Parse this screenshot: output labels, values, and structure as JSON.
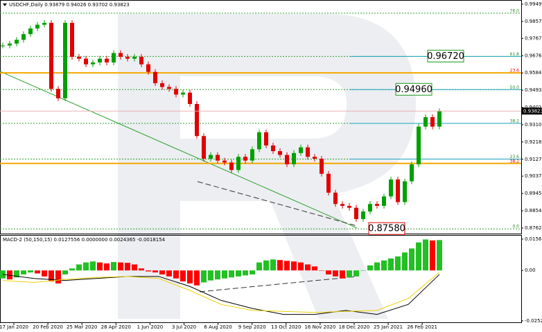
{
  "chart_data": {
    "type": "candlestick",
    "title": "USDCHF,Daily  0.93879 0.94026 0.93702 0.93823",
    "closes": [
      0.973,
      0.974,
      0.976,
      0.979,
      0.982,
      0.984,
      0.985,
      0.95,
      0.945,
      0.985,
      0.967,
      0.966,
      0.963,
      0.964,
      0.966,
      0.964,
      0.969,
      0.967,
      0.966,
      0.967,
      0.963,
      0.959,
      0.953,
      0.951,
      0.95,
      0.947,
      0.948,
      0.942,
      0.925,
      0.913,
      0.915,
      0.912,
      0.911,
      0.907,
      0.914,
      0.912,
      0.918,
      0.927,
      0.92,
      0.917,
      0.915,
      0.91,
      0.916,
      0.919,
      0.914,
      0.913,
      0.905,
      0.895,
      0.889,
      0.888,
      0.887,
      0.881,
      0.885,
      0.889,
      0.888,
      0.893,
      0.902,
      0.89,
      0.901,
      0.91,
      0.93,
      0.935,
      0.93,
      0.9382
    ],
    "up_color": "#00a000",
    "down_color": "#e00000",
    "ylim": [
      0.87331,
      0.9971
    ],
    "yticks": [
      {
        "value": 0.9949,
        "label": "0.99490"
      },
      {
        "value": 0.98575,
        "label": "0.98575"
      },
      {
        "value": 0.97675,
        "label": "0.97675"
      },
      {
        "value": 0.9676,
        "label": "0.96760"
      },
      {
        "value": 0.95845,
        "label": "0.95845"
      },
      {
        "value": 0.9493,
        "label": "0.94930"
      },
      {
        "value": 0.94015,
        "label": "0.94015"
      },
      {
        "value": 0.931,
        "label": "0.93100"
      },
      {
        "value": 0.92185,
        "label": "0.92185"
      },
      {
        "value": 0.9127,
        "label": "0.91270"
      },
      {
        "value": 0.90375,
        "label": "0.90375"
      },
      {
        "value": 0.89455,
        "label": "0.89455"
      },
      {
        "value": 0.8854,
        "label": "0.88540"
      },
      {
        "value": 0.87625,
        "label": "0.87625"
      }
    ],
    "x_labels": [
      "17 Jan 2020",
      "20 Feb 2020",
      "25 Mar 2020",
      "28 Apr 2020",
      "1 Jun 2020",
      "3 Jul 2020",
      "6 Aug 2020",
      "9 Sep 2020",
      "13 Oct 2020",
      "16 Nov 2020",
      "18 Dec 2020",
      "25 Jan 2021",
      "26 Feb 2021"
    ],
    "retracement_levels": [
      {
        "label": "76.0",
        "value": 0.9901
      },
      {
        "label": "61.8",
        "value": 0.9672
      },
      {
        "label": "50.0",
        "value": 0.9496
      },
      {
        "label": "38.2",
        "value": 0.9317
      },
      {
        "label": "23.6",
        "value": 0.9128
      },
      {
        "label": "0.0",
        "value": 0.8758
      }
    ],
    "orange_levels": [
      {
        "label": "23.6",
        "value": 0.9585
      },
      {
        "label": "38.2",
        "value": 0.9105
      }
    ],
    "price_boxes": [
      {
        "label": "0.96720",
        "value": 0.9672,
        "color": "#1a9a1a"
      },
      {
        "label": "0.94960",
        "value": 0.9496,
        "color": "#1a9a1a"
      },
      {
        "label": "0.87580",
        "value": 0.8758,
        "color": "#e00000"
      }
    ],
    "current_price": {
      "label": "0.93823",
      "value": 0.93823
    },
    "macd": {
      "title": "MACD-2 (50,150,15) 0.0127556 0.0000000 0.0024365 -0.0018154",
      "histogram": [
        -0.004,
        -0.0045,
        -0.0035,
        -0.002,
        -0.001,
        -0.0015,
        -0.003,
        -0.0055,
        -0.0065,
        -0.002,
        0.001,
        0.003,
        0.004,
        0.0045,
        0.004,
        0.0035,
        0.0042,
        0.004,
        0.0038,
        0.003,
        0.001,
        -0.0005,
        -0.001,
        -0.002,
        -0.003,
        -0.004,
        -0.0055,
        -0.0065,
        -0.0075,
        -0.006,
        -0.005,
        -0.0045,
        -0.004,
        -0.0035,
        -0.003,
        -0.0025,
        -0.002,
        0.004,
        0.005,
        0.0055,
        0.0052,
        0.0048,
        0.0045,
        0.004,
        0.003,
        0.002,
        0.0,
        -0.002,
        -0.003,
        -0.004,
        -0.0035,
        -0.003,
        0.0,
        0.0025,
        0.004,
        0.005,
        0.006,
        0.007,
        0.009,
        0.011,
        0.014,
        0.0155,
        0.015,
        0.0152
      ],
      "rise_color": "#22c022",
      "fall_color": "#ff0000",
      "main": {
        "color": "#000000",
        "values": [
          -0.002,
          -0.004,
          -0.005,
          -0.004,
          -0.003,
          -0.003,
          -0.008,
          -0.015,
          -0.019,
          -0.022,
          -0.022,
          -0.02,
          -0.022,
          -0.017,
          -0.002
        ]
      },
      "signal": {
        "color": "#f0d000",
        "values": [
          -0.005,
          -0.006,
          -0.0045,
          -0.0035,
          -0.003,
          -0.004,
          -0.01,
          -0.017,
          -0.02,
          -0.0205,
          -0.021,
          -0.0205,
          -0.02,
          -0.014,
          -0.001
        ]
      },
      "ylim": [
        -0.0263,
        0.0174
      ],
      "yticks": [
        0.0156812,
        {
          "value": 0,
          "label": "0.00"
        },
        -0.0252188
      ]
    }
  }
}
